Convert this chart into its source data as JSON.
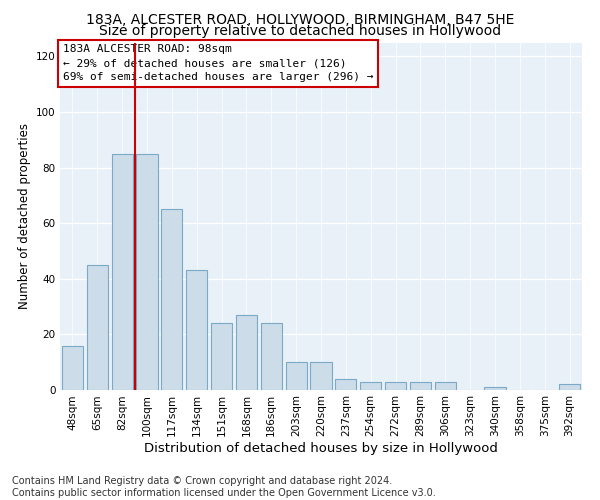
{
  "title1": "183A, ALCESTER ROAD, HOLLYWOOD, BIRMINGHAM, B47 5HE",
  "title2": "Size of property relative to detached houses in Hollywood",
  "xlabel": "Distribution of detached houses by size in Hollywood",
  "ylabel": "Number of detached properties",
  "categories": [
    "48sqm",
    "65sqm",
    "82sqm",
    "100sqm",
    "117sqm",
    "134sqm",
    "151sqm",
    "168sqm",
    "186sqm",
    "203sqm",
    "220sqm",
    "237sqm",
    "254sqm",
    "272sqm",
    "289sqm",
    "306sqm",
    "323sqm",
    "340sqm",
    "358sqm",
    "375sqm",
    "392sqm"
  ],
  "values": [
    16,
    45,
    85,
    85,
    65,
    43,
    24,
    27,
    24,
    10,
    10,
    4,
    3,
    3,
    3,
    3,
    0,
    1,
    0,
    0,
    2
  ],
  "bar_color": "#ccdce8",
  "bar_edge_color": "#7aaac8",
  "vline_x": 2.5,
  "vline_color": "#cc0000",
  "annotation_text": "183A ALCESTER ROAD: 98sqm\n← 29% of detached houses are smaller (126)\n69% of semi-detached houses are larger (296) →",
  "annotation_box_color": "#ffffff",
  "annotation_box_edge": "#cc0000",
  "ylim": [
    0,
    125
  ],
  "yticks": [
    0,
    20,
    40,
    60,
    80,
    100,
    120
  ],
  "footer": "Contains HM Land Registry data © Crown copyright and database right 2024.\nContains public sector information licensed under the Open Government Licence v3.0.",
  "plot_bg_color": "#e8f0f8",
  "title1_fontsize": 10,
  "title2_fontsize": 10,
  "xlabel_fontsize": 9.5,
  "ylabel_fontsize": 8.5,
  "footer_fontsize": 7,
  "tick_fontsize": 7.5,
  "annot_fontsize": 8
}
